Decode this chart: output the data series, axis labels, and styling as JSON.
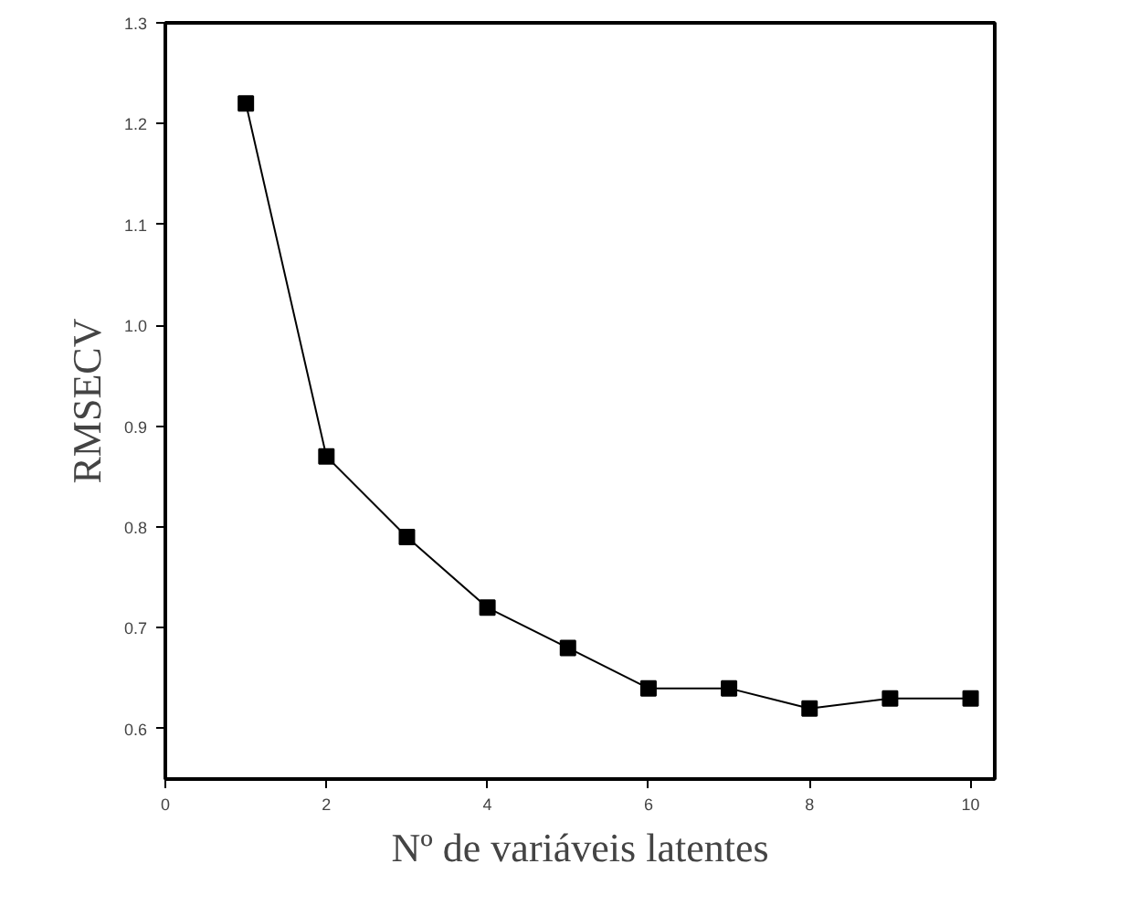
{
  "chart_data": {
    "type": "line",
    "xlabel": "Nº de variáveis latentes",
    "ylabel": "RMSECV",
    "x": [
      1,
      2,
      3,
      4,
      5,
      6,
      7,
      8,
      9,
      10
    ],
    "series": [
      {
        "color": "#000000",
        "values": [
          1.22,
          0.87,
          0.79,
          0.72,
          0.68,
          0.64,
          0.64,
          0.62,
          0.63,
          0.63
        ]
      }
    ],
    "xlim": [
      0,
      10.3
    ],
    "ylim": [
      0.55,
      1.3
    ],
    "xticks": [
      0,
      2,
      4,
      6,
      8,
      10
    ],
    "yticks": [
      {
        "value": 0.6,
        "label": "0.6"
      },
      {
        "value": 0.7,
        "label": "0.7"
      },
      {
        "value": 0.8,
        "label": "0.8"
      },
      {
        "value": 0.9,
        "label": "0.9"
      },
      {
        "value": 1.0,
        "label": "1.0"
      },
      {
        "value": 1.1,
        "label": "1.1"
      },
      {
        "value": 1.2,
        "label": "1.2"
      },
      {
        "value": 1.3,
        "label": "1.3"
      }
    ],
    "marker": "square",
    "grid": false
  }
}
